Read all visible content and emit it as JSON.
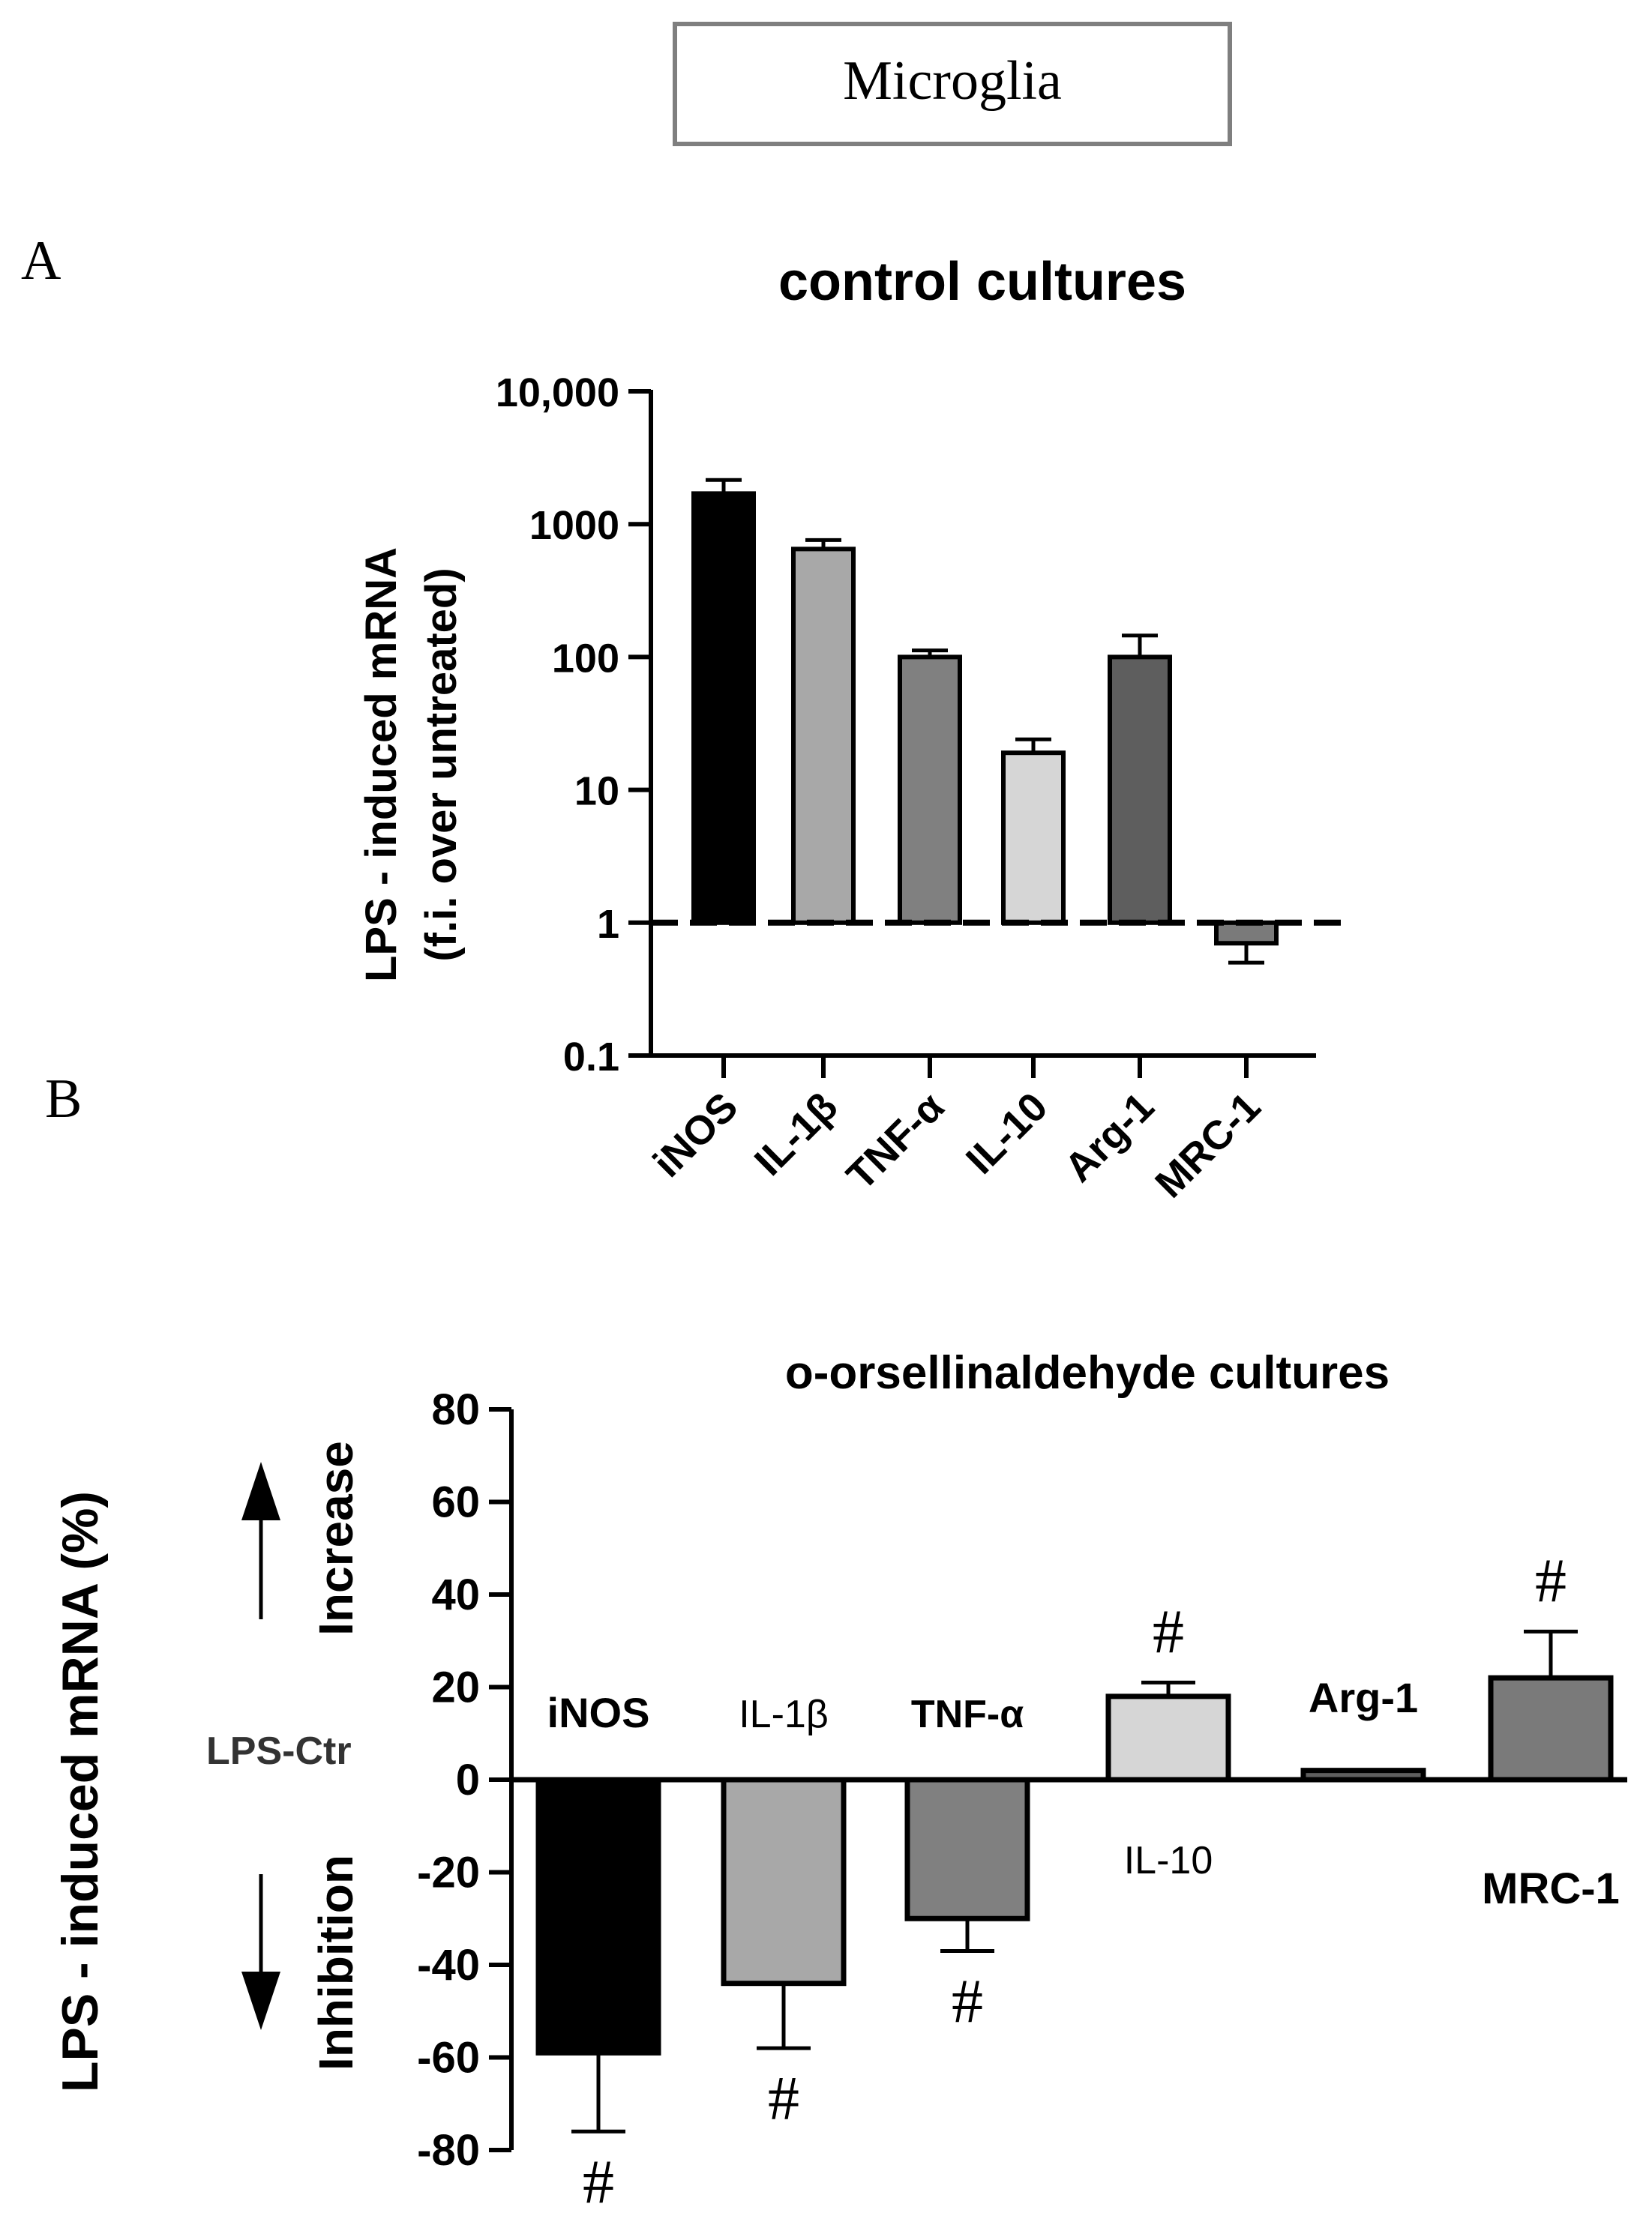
{
  "header": {
    "box_label": "Microglia"
  },
  "panels": {
    "a_letter": "A",
    "b_letter": "B"
  },
  "colors": {
    "ink": "#000000",
    "iNOS": "#000000",
    "IL-1β": "#a8a8a8",
    "TNF-α": "#808080",
    "IL-10": "#d6d6d6",
    "Arg-1": "#5e5e5e",
    "MRC-1": "#7a7a7a",
    "box_border": "#7f7f7f"
  },
  "chart_data": [
    {
      "type": "bar",
      "title": "control cultures",
      "ylabel_line1": "LPS - induced mRNA",
      "ylabel_line2": "(f.i. over untreated)",
      "yscale": "log",
      "ylim": [
        0.1,
        10000
      ],
      "ytick_values": [
        0.1,
        1,
        10,
        100,
        1000,
        10000
      ],
      "ytick_labels": [
        "0.1",
        "1",
        "10",
        "100",
        "1000",
        "10,000"
      ],
      "baseline": 1,
      "baseline_style": "dashed",
      "categories": [
        "iNOS",
        "IL-1β",
        "TNF-α",
        "IL-10",
        "Arg-1",
        "MRC-1"
      ],
      "values": [
        1700,
        650,
        100,
        19,
        100,
        0.7
      ],
      "errors": [
        450,
        110,
        12,
        5,
        45,
        0.2
      ]
    },
    {
      "type": "bar",
      "title": "o-orsellinaldehyde cultures",
      "ylabel": "LPS - induced mRNA (%)",
      "ylim": [
        -80,
        80
      ],
      "ytick_values": [
        -80,
        -60,
        -40,
        -20,
        0,
        20,
        40,
        60,
        80
      ],
      "ytick_labels": [
        "-80",
        "-60",
        "-40",
        "-20",
        "0",
        "20",
        "40",
        "60",
        "80"
      ],
      "zero_label": "LPS-Ctr",
      "increase_label": "Increase",
      "inhibition_label": "Inhibition",
      "significance_marker": "#",
      "categories": [
        "iNOS",
        "IL-1β",
        "TNF-α",
        "IL-10",
        "Arg-1",
        "MRC-1"
      ],
      "values": [
        -59,
        -44,
        -30,
        18,
        2,
        22
      ],
      "errors": [
        17,
        14,
        7,
        3,
        0,
        10
      ],
      "significant": [
        true,
        true,
        true,
        true,
        false,
        true
      ]
    }
  ]
}
